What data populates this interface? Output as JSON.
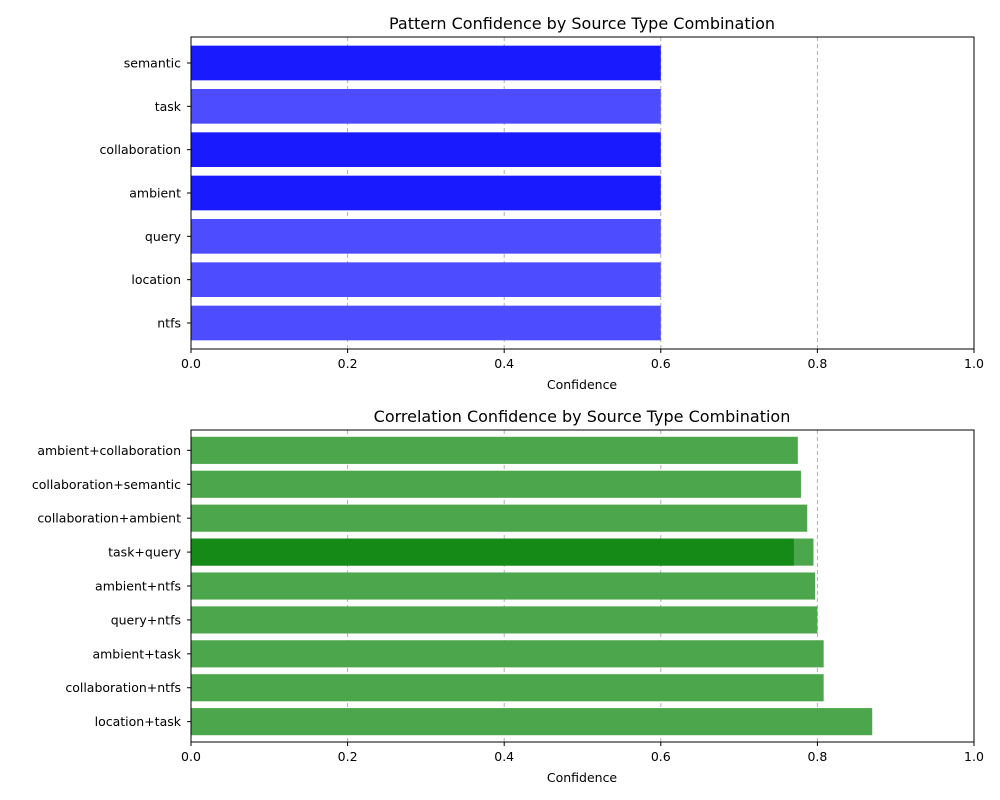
{
  "chart_data": [
    {
      "type": "bar",
      "orientation": "horizontal",
      "title": "Pattern Confidence by Source Type Combination",
      "xlabel": "Confidence",
      "ylabel": "",
      "xlim": [
        0,
        1
      ],
      "xticks": [
        "0.0",
        "0.2",
        "0.4",
        "0.6",
        "0.8",
        "1.0"
      ],
      "grid": "x-dashed",
      "categories": [
        "semantic",
        "task",
        "collaboration",
        "ambient",
        "query",
        "location",
        "ntfs"
      ],
      "series": [
        {
          "values": [
            0.6,
            0.6,
            0.6,
            0.6,
            0.6,
            0.6,
            0.6
          ],
          "colors": [
            "#1a1aff",
            "#4d4dff",
            "#1a1aff",
            "#1a1aff",
            "#4d4dff",
            "#4d4dff",
            "#4d4dff"
          ]
        }
      ]
    },
    {
      "type": "bar",
      "orientation": "horizontal",
      "title": "Correlation Confidence by Source Type Combination",
      "xlabel": "Confidence",
      "ylabel": "",
      "xlim": [
        0,
        1
      ],
      "xticks": [
        "0.0",
        "0.2",
        "0.4",
        "0.6",
        "0.8",
        "1.0"
      ],
      "grid": "x-dashed",
      "categories": [
        "ambient+collaboration",
        "collaboration+semantic",
        "collaboration+ambient",
        "task+query",
        "ambient+ntfs",
        "query+ntfs",
        "ambient+task",
        "collaboration+ntfs",
        "location+task"
      ],
      "series": [
        {
          "values": [
            0.775,
            0.779,
            0.787,
            0.795,
            0.797,
            0.8,
            0.808,
            0.808,
            0.87
          ],
          "colors": [
            "#4ca64c",
            "#4ca64c",
            "#4ca64c",
            "#4ca64c",
            "#4ca64c",
            "#4ca64c",
            "#4ca64c",
            "#4ca64c",
            "#4ca64c"
          ]
        },
        {
          "overlay": true,
          "values": [
            null,
            null,
            null,
            0.77,
            null,
            null,
            null,
            null,
            null
          ],
          "colors": [
            "#168a16",
            "#168a16",
            "#168a16",
            "#168a16",
            "#168a16",
            "#168a16",
            "#168a16",
            "#168a16",
            "#168a16"
          ]
        }
      ]
    }
  ]
}
